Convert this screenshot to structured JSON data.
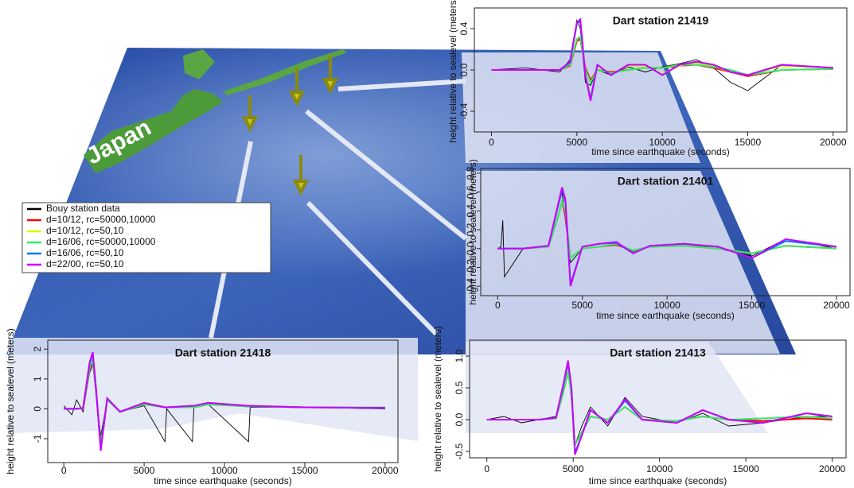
{
  "map_label": "Japan",
  "legend": [
    {
      "name": "Bouy station data",
      "color": "#000000"
    },
    {
      "name": "d=10/12, rc=50000,10000",
      "color": "#ff0000"
    },
    {
      "name": "d=10/12, rc=50,10",
      "color": "#ccff00"
    },
    {
      "name": "d=16/06, rc=50000,10000",
      "color": "#33ee66"
    },
    {
      "name": "d=16/06, rc=50,10",
      "color": "#0077ff"
    },
    {
      "name": "d=22/00, rc=50,10",
      "color": "#cc00ff"
    }
  ],
  "chart_data": [
    {
      "type": "line",
      "title": "Dart station 21419",
      "x_label": "time since earthquake (seconds)",
      "y_label": "height relative to sealevel (meters)",
      "xlim": [
        -1000,
        20800
      ],
      "ylim": [
        -0.6,
        0.6
      ],
      "xticks": [
        0,
        5000,
        10000,
        15000,
        20000
      ],
      "yticks": [
        -0.4,
        {
          "value": 0,
          "label": "0.0"
        },
        0.4
      ],
      "x": [
        0,
        2000,
        4000,
        4600,
        5000,
        5200,
        5500,
        5800,
        6200,
        7000,
        8000,
        9000,
        10000,
        11000,
        12000,
        13000,
        14000,
        15000,
        17000,
        20000
      ],
      "series": [
        {
          "values": [
            0,
            0.02,
            -0.02,
            0.1,
            0.48,
            0.4,
            -0.12,
            -0.15,
            0,
            -0.05,
            0.03,
            -0.02,
            0.03,
            0.06,
            0.1,
            0.02,
            -0.12,
            -0.2,
            0.05,
            0.02
          ]
        },
        {
          "values": [
            0,
            0,
            0,
            0.04,
            0.28,
            0.3,
            0.02,
            -0.1,
            0,
            -0.02,
            0,
            0.02,
            0.02,
            0.04,
            0.05,
            0.02,
            -0.02,
            -0.06,
            0,
            0.01
          ]
        },
        {
          "values": [
            0,
            0,
            0,
            0.07,
            0.44,
            0.47,
            -0.04,
            -0.27,
            0.04,
            -0.04,
            0.04,
            0.04,
            -0.04,
            0.04,
            0.07,
            0.04,
            -0.02,
            -0.05,
            0.04,
            0.02
          ]
        },
        {
          "values": [
            0,
            0,
            0,
            0.05,
            0.3,
            0.32,
            0,
            -0.12,
            0,
            -0.03,
            0,
            0.02,
            0.02,
            0.05,
            0.05,
            0.03,
            0,
            -0.05,
            0,
            0.01
          ]
        },
        {
          "values": [
            0,
            0,
            0,
            0.07,
            0.45,
            0.47,
            -0.05,
            -0.28,
            0.05,
            -0.05,
            0.05,
            0.05,
            -0.05,
            0.05,
            0.08,
            0.05,
            -0.02,
            -0.05,
            0.05,
            0.02
          ]
        },
        {
          "values": [
            0,
            0,
            0,
            0.08,
            0.46,
            0.49,
            -0.05,
            -0.3,
            0.05,
            -0.05,
            0.05,
            0.05,
            -0.05,
            0.05,
            0.08,
            0.05,
            -0.02,
            -0.05,
            0.05,
            0.02
          ]
        }
      ]
    },
    {
      "type": "line",
      "title": "Dart station 21401",
      "x_label": "time since earthquake (seconds)",
      "y_label": "height relative to sealevel (meters)",
      "xlim": [
        -1000,
        20800
      ],
      "ylim": [
        -0.5,
        0.85
      ],
      "xticks": [
        0,
        5000,
        10000,
        15000,
        20000
      ],
      "yticks": [
        -0.4,
        -0.2,
        {
          "value": 0,
          "label": "0.0"
        },
        0.2,
        0.4,
        0.6,
        0.8
      ],
      "x": [
        0,
        200,
        300,
        400,
        1500,
        3000,
        3500,
        3800,
        4000,
        4300,
        5000,
        6000,
        7000,
        8000,
        9000,
        11000,
        13000,
        15000,
        17000,
        20000
      ],
      "series": [
        {
          "values": [
            0,
            0.02,
            0.3,
            -0.3,
            0,
            0.03,
            0.4,
            0.6,
            0.3,
            -0.15,
            0,
            0.02,
            0.05,
            -0.03,
            0.03,
            0.05,
            0,
            -0.08,
            0.1,
            0
          ]
        },
        {
          "values": [
            0,
            0,
            0,
            0,
            0,
            0.02,
            0.3,
            0.5,
            0.35,
            -0.1,
            0,
            0.02,
            0.04,
            -0.02,
            0.02,
            0.03,
            0,
            -0.05,
            0.03,
            0
          ]
        },
        {
          "values": [
            0,
            0,
            0,
            0,
            0,
            0.03,
            0.4,
            0.64,
            0.5,
            -0.38,
            0.02,
            0.05,
            0.06,
            -0.05,
            0.03,
            0.05,
            0.02,
            -0.1,
            0.08,
            0.02
          ]
        },
        {
          "values": [
            0,
            0,
            0,
            0,
            0,
            0.02,
            0.3,
            0.5,
            0.4,
            -0.1,
            0,
            0.02,
            0.05,
            -0.02,
            0.02,
            0.03,
            0,
            -0.05,
            0.03,
            0
          ]
        },
        {
          "values": [
            0,
            0,
            0,
            0,
            0,
            0.03,
            0.4,
            0.63,
            0.5,
            -0.38,
            0.02,
            0.05,
            0.06,
            -0.05,
            0.03,
            0.05,
            0.02,
            -0.1,
            0.08,
            0.02
          ]
        },
        {
          "values": [
            0,
            0,
            0,
            0,
            0,
            0.03,
            0.42,
            0.65,
            0.52,
            -0.4,
            0.02,
            0.05,
            0.07,
            -0.05,
            0.03,
            0.05,
            0.02,
            -0.1,
            0.1,
            0.02
          ]
        }
      ]
    },
    {
      "type": "line",
      "title": "Dart station 21418",
      "x_label": "time since earthquake (seconds)",
      "y_label": "height relative to sealevel (meters)",
      "xlim": [
        -1000,
        20800
      ],
      "ylim": [
        -1.8,
        2.3
      ],
      "xticks": [
        0,
        5000,
        10000,
        15000,
        20000
      ],
      "yticks": [
        -1,
        0,
        1,
        2
      ],
      "x": [
        0,
        500,
        800,
        1200,
        1600,
        1800,
        2000,
        2300,
        2700,
        3500,
        5000,
        6300,
        6400,
        8000,
        8100,
        9000,
        11500,
        11600,
        15000,
        20000
      ],
      "series": [
        {
          "values": [
            0.1,
            -0.2,
            0.3,
            -0.1,
            1.2,
            1.5,
            0.5,
            -0.9,
            0.3,
            -0.1,
            0.1,
            -1.1,
            0,
            -1.1,
            0.1,
            0.15,
            -1.1,
            0.05,
            0.05,
            0
          ]
        },
        {
          "values": [
            0,
            0,
            0,
            0.02,
            1.3,
            1.6,
            0.6,
            -1.2,
            0.3,
            -0.1,
            0.15,
            0.05,
            0.05,
            0.05,
            0.05,
            0.15,
            0.08,
            0.08,
            0.05,
            0.05
          ]
        },
        {
          "values": [
            0,
            0,
            0,
            0.03,
            1.5,
            1.85,
            0.7,
            -1.35,
            0.35,
            -0.1,
            0.2,
            0.05,
            0.05,
            0.1,
            0.1,
            0.2,
            0.1,
            0.1,
            0.05,
            0.03
          ]
        },
        {
          "values": [
            0,
            0,
            0,
            0.02,
            1.35,
            1.65,
            0.6,
            -1.2,
            0.3,
            -0.1,
            0.15,
            0.05,
            0.05,
            0.05,
            0.05,
            0.15,
            0.08,
            0.08,
            0.05,
            0.05
          ]
        },
        {
          "values": [
            0,
            0,
            0,
            0.03,
            1.5,
            1.85,
            0.7,
            -1.35,
            0.35,
            -0.1,
            0.2,
            0.05,
            0.05,
            0.1,
            0.1,
            0.2,
            0.1,
            0.1,
            0.05,
            0.03
          ]
        },
        {
          "values": [
            0,
            0,
            0,
            0.03,
            1.55,
            1.9,
            0.7,
            -1.4,
            0.35,
            -0.1,
            0.2,
            0.05,
            0.05,
            0.1,
            0.1,
            0.2,
            0.1,
            0.1,
            0.05,
            0.03
          ]
        }
      ]
    },
    {
      "type": "line",
      "title": "Dart station 21413",
      "x_label": "time since earthquake (seconds)",
      "y_label": "height relative to sealevel (meters)",
      "xlim": [
        -1000,
        20800
      ],
      "ylim": [
        -0.6,
        1.25
      ],
      "xticks": [
        0,
        5000,
        10000,
        15000,
        20000
      ],
      "yticks": [
        {
          "value": -0.5,
          "label": "-0.5"
        },
        {
          "value": 0,
          "label": "0.0"
        },
        0.5,
        {
          "value": 1,
          "label": "1.0"
        }
      ],
      "x": [
        0,
        1000,
        2000,
        3000,
        4000,
        4400,
        4700,
        4900,
        5100,
        5500,
        6000,
        7000,
        8000,
        9000,
        11000,
        12500,
        14000,
        16000,
        18500,
        20000
      ],
      "series": [
        {
          "values": [
            0,
            0.05,
            -0.05,
            0,
            0.05,
            0.5,
            0.85,
            0.3,
            -0.4,
            -0.1,
            0.2,
            -0.1,
            0.35,
            0.05,
            -0.05,
            0.1,
            -0.1,
            -0.05,
            0.05,
            0.05
          ]
        },
        {
          "values": [
            0,
            0,
            0,
            0,
            0.02,
            0.4,
            0.75,
            0.4,
            -0.4,
            -0.2,
            0.05,
            0,
            0.2,
            0,
            -0.02,
            0.05,
            0,
            -0.02,
            0.02,
            0
          ]
        },
        {
          "values": [
            0,
            0,
            0,
            0,
            0.03,
            0.5,
            0.9,
            0.5,
            -0.52,
            -0.25,
            0.15,
            -0.05,
            0.3,
            0,
            -0.05,
            0.15,
            0,
            -0.05,
            0.1,
            0.05
          ]
        },
        {
          "values": [
            0,
            0,
            0,
            0,
            0.02,
            0.4,
            0.75,
            0.4,
            -0.4,
            -0.2,
            0.05,
            0,
            0.2,
            0,
            -0.02,
            0.05,
            0,
            0.02,
            0.05,
            0.02
          ]
        },
        {
          "values": [
            0,
            0,
            0,
            0,
            0.03,
            0.5,
            0.9,
            0.5,
            -0.52,
            -0.25,
            0.15,
            -0.05,
            0.3,
            0,
            -0.05,
            0.15,
            0,
            -0.05,
            0.1,
            0.05
          ]
        },
        {
          "values": [
            0,
            0,
            0,
            0,
            0.03,
            0.52,
            0.93,
            0.5,
            -0.55,
            -0.25,
            0.15,
            -0.05,
            0.32,
            0,
            -0.05,
            0.15,
            0,
            -0.05,
            0.1,
            0.05
          ]
        }
      ]
    }
  ]
}
